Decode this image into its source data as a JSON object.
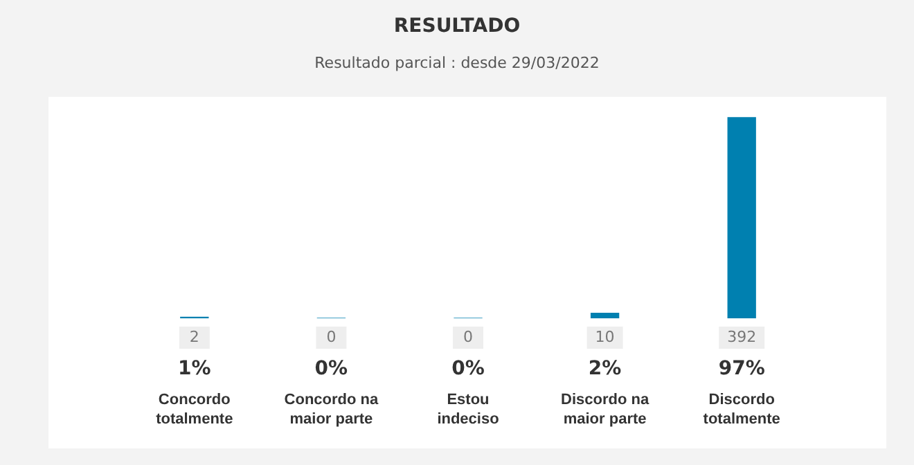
{
  "chart_data": {
    "type": "bar",
    "title": "RESULTADO",
    "subtitle": "Resultado parcial : desde 29/03/2022",
    "categories": [
      "Concordo totalmente",
      "Concordo na maior parte",
      "Estou indeciso",
      "Discordo na maior parte",
      "Discordo totalmente"
    ],
    "values": [
      2,
      0,
      0,
      10,
      392
    ],
    "color": "#0080b0",
    "data_labels": true,
    "annotations": [
      "1%",
      "0%",
      "0%",
      "2%",
      "97%"
    ],
    "legend": false
  }
}
